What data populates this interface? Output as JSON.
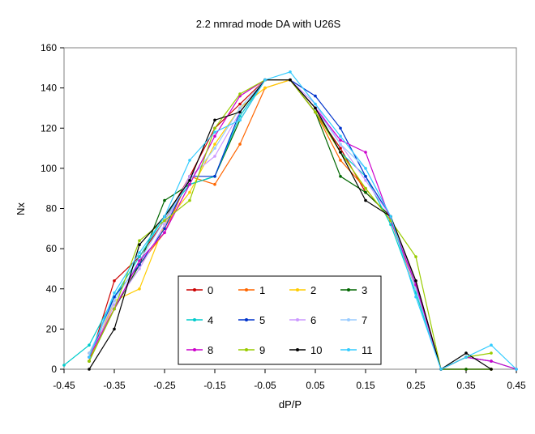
{
  "chart_data": {
    "type": "line",
    "title": "2.2 nmrad mode DA with U26S",
    "xlabel": "dP/P",
    "ylabel": "Nx",
    "xlim": [
      -0.45,
      0.45
    ],
    "ylim": [
      0,
      160
    ],
    "xticks": [
      -0.45,
      -0.35,
      -0.25,
      -0.15,
      -0.05,
      0.05,
      0.15,
      0.25,
      0.35,
      0.45
    ],
    "xtick_labels": [
      "-0.45",
      "-0.35",
      "-0.25",
      "-0.15",
      "-0.05",
      "0.05",
      "0.15",
      "0.25",
      "0.35",
      "0.45"
    ],
    "yticks": [
      0,
      20,
      40,
      60,
      80,
      100,
      120,
      140,
      160
    ],
    "ytick_labels": [
      "0",
      "20",
      "40",
      "60",
      "80",
      "100",
      "120",
      "140",
      "160"
    ],
    "grid": false,
    "legend": {
      "placement": "bottom-center-inside",
      "columns": 4
    },
    "x": [
      -0.45,
      -0.4,
      -0.35,
      -0.3,
      -0.25,
      -0.2,
      -0.15,
      -0.1,
      -0.05,
      0.0,
      0.05,
      0.1,
      0.15,
      0.2,
      0.25,
      0.3,
      0.35,
      0.4,
      0.45
    ],
    "series": [
      {
        "name": "0",
        "color": "#cc0000",
        "values": [
          null,
          4,
          44,
          56,
          74,
          96,
          120,
          132,
          144,
          144,
          128,
          110,
          88,
          76,
          44,
          0,
          6,
          4,
          null
        ]
      },
      {
        "name": "1",
        "color": "#ff6600",
        "values": [
          null,
          8,
          30,
          52,
          68,
          96,
          92,
          112,
          140,
          144,
          128,
          104,
          90,
          74,
          40,
          0,
          0,
          0,
          null
        ]
      },
      {
        "name": "2",
        "color": "#ffcc00",
        "values": [
          null,
          4,
          34,
          40,
          72,
          88,
          112,
          130,
          140,
          144,
          130,
          108,
          90,
          74,
          42,
          0,
          0,
          0,
          null
        ]
      },
      {
        "name": "3",
        "color": "#006600",
        "values": [
          null,
          4,
          30,
          52,
          84,
          92,
          96,
          124,
          144,
          144,
          128,
          96,
          88,
          76,
          42,
          0,
          0,
          0,
          null
        ]
      },
      {
        "name": "4",
        "color": "#00cccc",
        "values": [
          2,
          12,
          36,
          56,
          76,
          92,
          96,
          126,
          144,
          144,
          130,
          108,
          96,
          72,
          38,
          0,
          6,
          4,
          0
        ]
      },
      {
        "name": "5",
        "color": "#0033cc",
        "values": [
          null,
          6,
          36,
          52,
          70,
          96,
          96,
          128,
          144,
          144,
          136,
          120,
          96,
          76,
          42,
          0,
          6,
          4,
          null
        ]
      },
      {
        "name": "6",
        "color": "#cc99ff",
        "values": [
          null,
          6,
          32,
          50,
          72,
          96,
          106,
          128,
          144,
          144,
          132,
          112,
          94,
          76,
          42,
          0,
          6,
          4,
          null
        ]
      },
      {
        "name": "7",
        "color": "#99ccff",
        "values": [
          null,
          8,
          34,
          54,
          74,
          94,
          110,
          130,
          144,
          144,
          130,
          112,
          100,
          76,
          40,
          0,
          6,
          4,
          null
        ]
      },
      {
        "name": "8",
        "color": "#cc00cc",
        "values": [
          null,
          6,
          30,
          54,
          68,
          92,
          116,
          136,
          144,
          144,
          130,
          114,
          108,
          74,
          42,
          0,
          6,
          4,
          0
        ]
      },
      {
        "name": "9",
        "color": "#99cc00",
        "values": [
          null,
          4,
          30,
          64,
          74,
          84,
          120,
          137,
          144,
          144,
          128,
          108,
          90,
          74,
          56,
          0,
          6,
          8,
          null
        ]
      },
      {
        "name": "10",
        "color": "#000000",
        "values": [
          null,
          0,
          20,
          62,
          76,
          94,
          124,
          128,
          144,
          144,
          130,
          108,
          84,
          76,
          44,
          0,
          8,
          0,
          null
        ]
      },
      {
        "name": "11",
        "color": "#33ccff",
        "values": [
          null,
          6,
          38,
          58,
          76,
          104,
          118,
          124,
          144,
          148,
          132,
          116,
          100,
          76,
          36,
          0,
          6,
          12,
          0
        ]
      }
    ]
  }
}
